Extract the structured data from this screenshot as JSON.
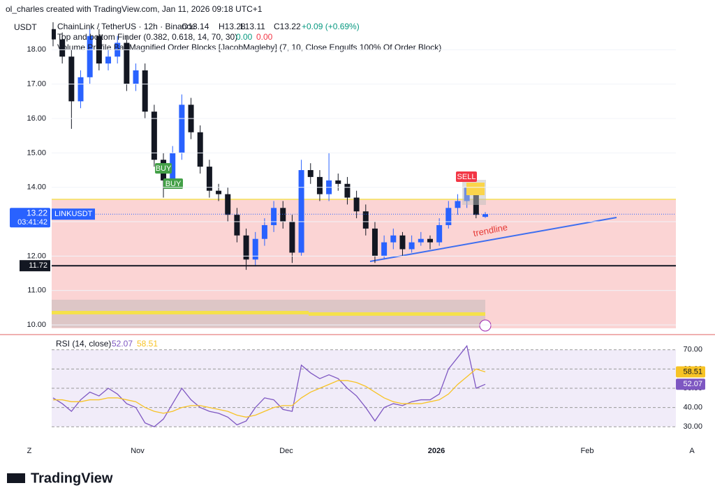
{
  "header": {
    "credit": "ol_charles created with TradingView.com, Jan 11, 2026 09:18 UTC+1"
  },
  "chart_data": {
    "type": "candlestick",
    "title": "ChainLink / TetherUS · 12h · Binance",
    "ohlc": [
      "O13.14",
      "H13.28",
      "L13.11",
      "C13.22"
    ],
    "change": "+0.09 (+0.69%)",
    "indicators": [
      {
        "name": "Top and bottom Finder (0.382, 0.618, 14, 70, 30)",
        "values": [
          "0.00",
          "0.00"
        ],
        "colors": [
          "#089981",
          "#f23645"
        ]
      },
      {
        "name": "Volume Profile Bar Magnified Order Blocks [JacobMagleby] (7, 10, Close Engulfs 100% Of Order Block)"
      }
    ],
    "y_label": "USDT",
    "symbol": "LINKUSDT",
    "countdown": "03:41:42",
    "up_color": "#2962ff",
    "down_color": "#131722",
    "ylim": [
      9.9,
      19.0
    ],
    "yticks": [
      {
        "value": 10,
        "label": "10.00"
      },
      {
        "value": 11,
        "label": "11.00"
      },
      {
        "value": 12,
        "label": "12.00"
      },
      {
        "value": 13,
        "label": "13.00"
      },
      {
        "value": 14,
        "label": "14.00"
      },
      {
        "value": 15,
        "label": "15.00"
      },
      {
        "value": 16,
        "label": "16.00"
      },
      {
        "value": 17,
        "label": "17.00"
      },
      {
        "value": 18,
        "label": "18.00"
      }
    ],
    "last_price": {
      "value": 13.22,
      "label": "13.22"
    },
    "level": {
      "value": 11.72,
      "label": "11.72"
    },
    "signals": [
      "BUY",
      "BUY",
      "SELL"
    ],
    "annotation": "trendline",
    "x_labels": [
      "Nov",
      "Dec",
      "2026",
      "Feb"
    ],
    "corner_labels": [
      "Z",
      "A"
    ],
    "candles": [
      [
        18.6,
        18.8,
        18.1,
        18.3
      ],
      [
        18.3,
        18.5,
        17.6,
        17.8
      ],
      [
        17.8,
        18.0,
        15.7,
        16.5
      ],
      [
        16.5,
        17.4,
        16.3,
        17.2
      ],
      [
        17.2,
        18.6,
        17.0,
        18.4
      ],
      [
        18.4,
        18.6,
        17.4,
        17.6
      ],
      [
        17.6,
        18.0,
        17.4,
        17.8
      ],
      [
        17.8,
        18.4,
        17.6,
        18.2
      ],
      [
        18.2,
        18.4,
        16.8,
        17.0
      ],
      [
        17.0,
        17.6,
        16.8,
        17.4
      ],
      [
        17.4,
        17.6,
        16.0,
        16.2
      ],
      [
        16.2,
        16.4,
        14.6,
        14.8
      ],
      [
        14.8,
        15.0,
        13.7,
        14.2
      ],
      [
        14.2,
        15.2,
        14.0,
        15.0
      ],
      [
        15.0,
        16.7,
        14.8,
        16.4
      ],
      [
        16.4,
        16.6,
        15.4,
        15.6
      ],
      [
        15.6,
        15.8,
        14.4,
        14.6
      ],
      [
        14.6,
        14.8,
        13.7,
        13.9
      ],
      [
        13.9,
        14.1,
        13.6,
        13.8
      ],
      [
        13.8,
        14.0,
        13.0,
        13.2
      ],
      [
        13.2,
        13.4,
        12.4,
        12.6
      ],
      [
        12.6,
        12.8,
        11.6,
        11.9
      ],
      [
        11.9,
        12.7,
        11.7,
        12.5
      ],
      [
        12.5,
        13.1,
        12.3,
        12.9
      ],
      [
        12.9,
        13.6,
        12.7,
        13.4
      ],
      [
        13.4,
        13.6,
        12.8,
        13.0
      ],
      [
        13.0,
        13.2,
        11.8,
        12.1
      ],
      [
        12.1,
        14.8,
        12.0,
        14.5
      ],
      [
        14.5,
        14.7,
        14.1,
        14.3
      ],
      [
        14.3,
        14.5,
        13.6,
        13.8
      ],
      [
        13.8,
        15.0,
        13.6,
        14.2
      ],
      [
        14.2,
        14.4,
        13.9,
        14.1
      ],
      [
        14.1,
        14.3,
        13.5,
        13.7
      ],
      [
        13.7,
        13.9,
        13.1,
        13.3
      ],
      [
        13.3,
        13.5,
        12.6,
        12.8
      ],
      [
        12.8,
        13.0,
        11.8,
        12.0
      ],
      [
        12.0,
        12.6,
        11.9,
        12.4
      ],
      [
        12.4,
        12.8,
        12.2,
        12.6
      ],
      [
        12.6,
        12.7,
        12.0,
        12.2
      ],
      [
        12.2,
        12.6,
        12.1,
        12.4
      ],
      [
        12.4,
        12.7,
        12.3,
        12.5
      ],
      [
        12.5,
        12.6,
        12.2,
        12.4
      ],
      [
        12.4,
        13.1,
        12.3,
        12.9
      ],
      [
        12.9,
        13.6,
        12.8,
        13.4
      ],
      [
        13.4,
        13.8,
        13.2,
        13.6
      ],
      [
        13.6,
        14.1,
        13.4,
        14.0
      ],
      [
        14.0,
        14.1,
        13.1,
        13.2
      ],
      [
        13.14,
        13.28,
        13.11,
        13.22
      ]
    ],
    "rsi": {
      "title": "RSI (14, close)",
      "ylim": [
        25,
        75
      ],
      "yticks": [
        {
          "value": 30,
          "label": "30.00"
        },
        {
          "value": 40,
          "label": "40.00"
        },
        {
          "value": 50,
          "label": "50.00"
        },
        {
          "value": 60,
          "label": "60.00"
        },
        {
          "value": 70,
          "label": "70.00"
        }
      ],
      "series": [
        {
          "name": "RSI",
          "color": "#7e57c2",
          "value_label": "52.07",
          "values": [
            45,
            42,
            38,
            44,
            48,
            46,
            50,
            47,
            42,
            40,
            32,
            30,
            34,
            42,
            50,
            44,
            40,
            38,
            37,
            35,
            31,
            33,
            40,
            45,
            44,
            39,
            38,
            62,
            58,
            55,
            57,
            55,
            50,
            46,
            40,
            33,
            40,
            42,
            41,
            43,
            44,
            44,
            47,
            60,
            66,
            72,
            50,
            52.07
          ]
        },
        {
          "name": "RSI MA",
          "color": "#f7c325",
          "value_label": "58.51",
          "values": [
            44,
            44,
            43,
            43,
            44,
            44,
            45,
            45,
            44,
            43,
            40,
            38,
            37,
            38,
            40,
            41,
            41,
            40,
            39,
            38,
            36,
            35,
            36,
            38,
            40,
            41,
            41,
            45,
            48,
            50,
            52,
            54,
            54,
            53,
            51,
            48,
            45,
            43,
            42,
            42,
            42,
            43,
            44,
            47,
            52,
            56,
            60,
            58.51
          ]
        }
      ]
    }
  },
  "footer": {
    "logo": "TradingView"
  }
}
